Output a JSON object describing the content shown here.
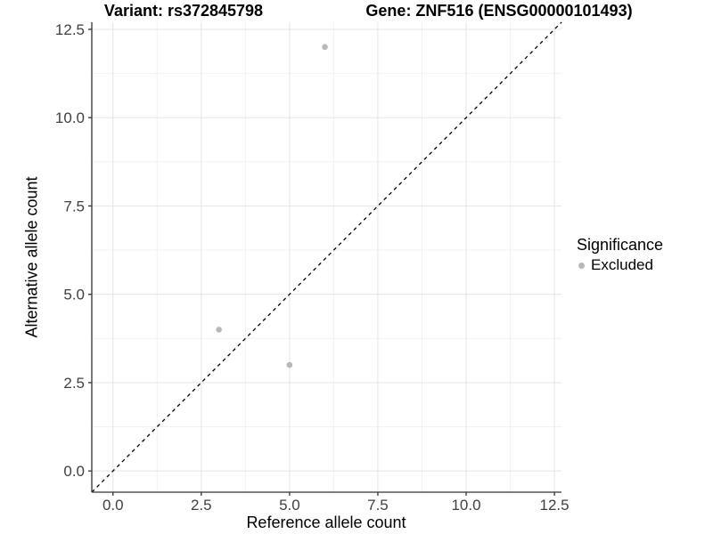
{
  "titles": {
    "variant": "Variant: rs372845798",
    "gene": "Gene: ZNF516 (ENSG00000101493)"
  },
  "axes": {
    "x": {
      "label": "Reference allele count",
      "tick_labels": [
        "0.0",
        "2.5",
        "5.0",
        "7.5",
        "10.0",
        "12.5"
      ]
    },
    "y": {
      "label": "Alternative allele count",
      "tick_labels": [
        "0.0",
        "2.5",
        "5.0",
        "7.5",
        "10.0",
        "12.5"
      ]
    }
  },
  "legend": {
    "title": "Significance",
    "items": [
      {
        "label": "Excluded",
        "marker": "circle",
        "color": "#b8b8b8"
      }
    ]
  },
  "chart_data": {
    "type": "scatter",
    "title": "Variant: rs372845798    Gene: ZNF516 (ENSG00000101493)",
    "xlabel": "Reference allele count",
    "ylabel": "Alternative allele count",
    "xlim": [
      -0.6,
      12.7
    ],
    "ylim": [
      -0.6,
      12.7
    ],
    "x_ticks": [
      0,
      2.5,
      5,
      7.5,
      10,
      12.5
    ],
    "y_ticks": [
      0,
      2.5,
      5,
      7.5,
      10,
      12.5
    ],
    "minor_gridlines": [
      1.25,
      3.75,
      6.25,
      8.75,
      11.25
    ],
    "grid": true,
    "legend_position": "right",
    "series": [
      {
        "name": "Excluded",
        "color": "#b8b8b8",
        "points": [
          {
            "x": 3,
            "y": 4
          },
          {
            "x": 5,
            "y": 3
          },
          {
            "x": 6,
            "y": 12
          }
        ]
      }
    ],
    "reference_line": {
      "kind": "identity",
      "slope": 1,
      "intercept": 0,
      "style": "dashed",
      "color": "#000000"
    }
  },
  "style": {
    "point_color": "#b8b8b8",
    "major_grid_color": "#e5e5e5",
    "minor_grid_color": "#f2f2f2",
    "axis_color": "#333333",
    "tick_label_color": "#404040",
    "text_color": "#000000",
    "background": "#ffffff"
  }
}
